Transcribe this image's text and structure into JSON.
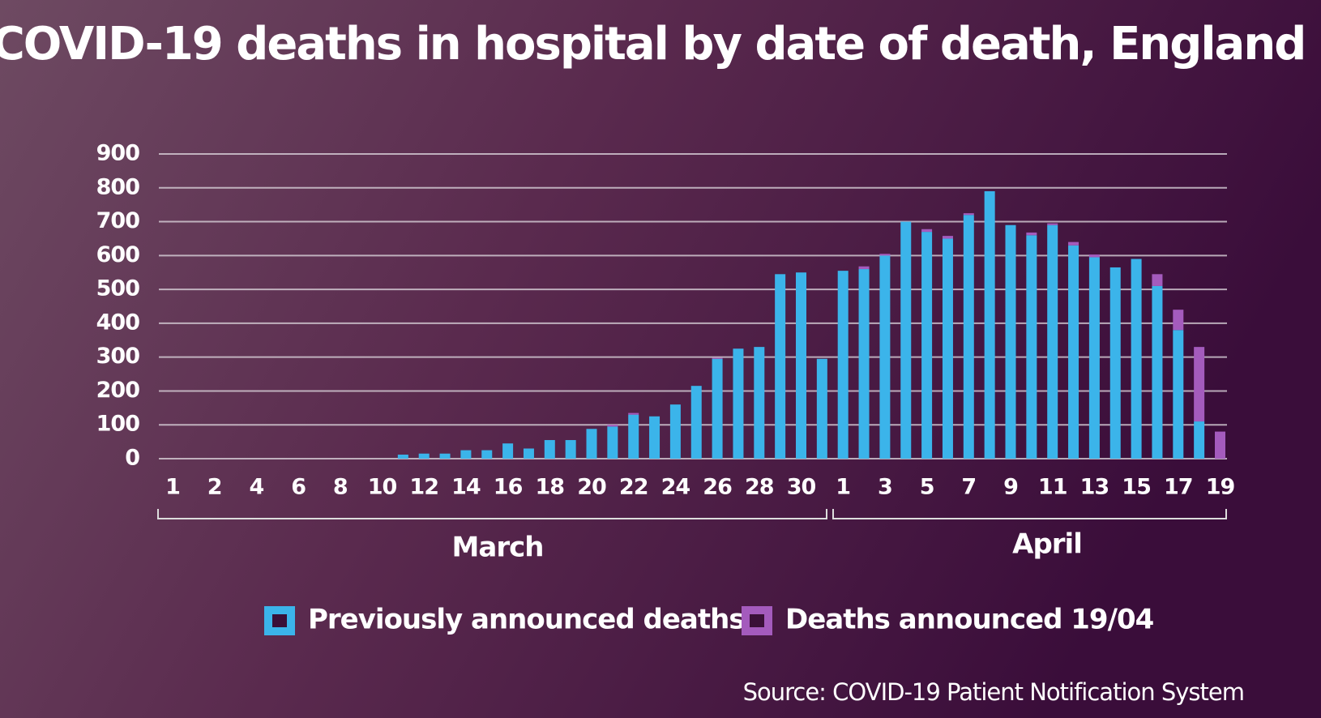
{
  "chart_data": {
    "type": "stacked-bar",
    "title": "COVID-19 deaths in hospital by date of death, England",
    "source": "Source: COVID-19 Patient Notification System",
    "categories": [
      "1",
      null,
      "2",
      null,
      "4",
      null,
      "6",
      null,
      "8",
      null,
      "10",
      null,
      "12",
      null,
      "14",
      null,
      "16",
      null,
      "18",
      null,
      "20",
      null,
      "22",
      null,
      "24",
      null,
      "26",
      null,
      "28",
      null,
      "30",
      null,
      "1",
      null,
      "3",
      null,
      "5",
      null,
      "7",
      null,
      "9",
      null,
      "11",
      null,
      "13",
      null,
      "15",
      null,
      "17",
      null,
      "19"
    ],
    "groups": [
      "March",
      "April"
    ],
    "series": [
      {
        "name": "Previously announced deaths",
        "color": "#3bb4ea",
        "values": [
          null,
          null,
          null,
          null,
          null,
          null,
          null,
          null,
          null,
          null,
          null,
          12,
          15,
          15,
          25,
          25,
          45,
          30,
          55,
          55,
          88,
          95,
          130,
          125,
          160,
          215,
          295,
          325,
          330,
          545,
          550,
          295,
          555,
          560,
          600,
          700,
          670,
          650,
          720,
          790,
          690,
          660,
          690,
          630,
          595,
          565,
          590,
          510,
          380,
          110,
          0
        ]
      },
      {
        "name": "Deaths announced 19/04",
        "color": "#a45bbd",
        "values": [
          null,
          null,
          null,
          null,
          null,
          null,
          null,
          null,
          null,
          null,
          null,
          0,
          0,
          0,
          0,
          0,
          0,
          0,
          0,
          0,
          0,
          5,
          5,
          0,
          0,
          0,
          3,
          0,
          0,
          0,
          0,
          0,
          0,
          8,
          5,
          0,
          8,
          8,
          5,
          0,
          0,
          8,
          5,
          10,
          8,
          0,
          0,
          35,
          60,
          220,
          80
        ]
      }
    ],
    "ylim": [
      0,
      900
    ],
    "yticks": [
      0,
      100,
      200,
      300,
      400,
      500,
      600,
      700,
      800,
      900
    ],
    "grid": true
  }
}
